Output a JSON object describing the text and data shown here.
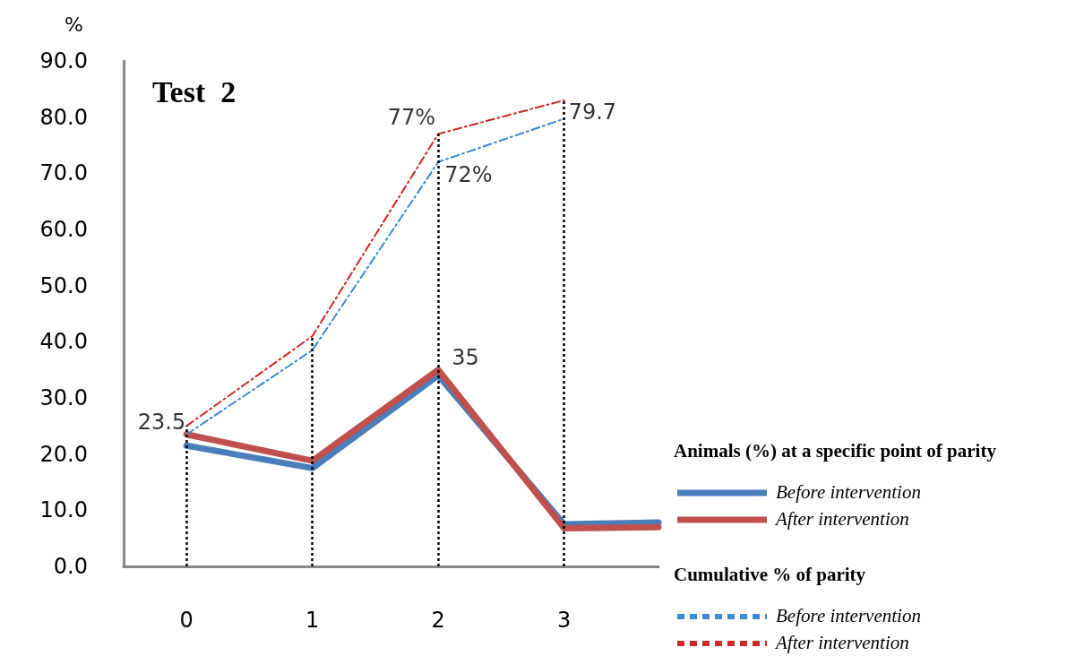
{
  "chart_data": {
    "type": "line",
    "title": "Test  2",
    "ylabel": "%",
    "xlim": [
      -0.5,
      3.75
    ],
    "xticks": [
      0,
      1,
      2,
      3
    ],
    "ylim": [
      0,
      90
    ],
    "yticks": [
      {
        "value": 0,
        "label": "0.0"
      },
      {
        "value": 10,
        "label": "10.0"
      },
      {
        "value": 20,
        "label": "20.0"
      },
      {
        "value": 30,
        "label": "30.0"
      },
      {
        "value": 40,
        "label": "40.0"
      },
      {
        "value": 50,
        "label": "50.0"
      },
      {
        "value": 60,
        "label": "60.0"
      },
      {
        "value": 70,
        "label": "70.0"
      },
      {
        "value": 80,
        "label": "80.0"
      },
      {
        "value": 90,
        "label": "90.0"
      }
    ],
    "series": [
      {
        "name": "Before intervention",
        "color": "#4a7ebb",
        "line_style": "solid",
        "x": [
          0,
          1,
          2,
          3,
          3.75
        ],
        "values": [
          21.5,
          17.5,
          34,
          7.5,
          7.8
        ]
      },
      {
        "name": "After intervention",
        "color": "#c0504d",
        "line_style": "solid",
        "x": [
          0,
          1,
          2,
          3,
          3.75
        ],
        "values": [
          23.5,
          18.8,
          35,
          6.8,
          7.0
        ]
      },
      {
        "name": "Before intervention",
        "color": "#3c8ad0",
        "line_style": "dashed",
        "x": [
          0,
          1,
          2,
          3
        ],
        "values": [
          23.5,
          38.5,
          72,
          79.7
        ]
      },
      {
        "name": "After intervention",
        "color": "#d02828",
        "line_style": "dashed",
        "x": [
          0,
          1,
          2,
          3
        ],
        "values": [
          25,
          41,
          77,
          83
        ]
      }
    ],
    "ref_lines": [
      {
        "axis": "x",
        "value": 0,
        "color": "#000000",
        "line_style": "dotted"
      },
      {
        "axis": "x",
        "value": 1,
        "color": "#000000",
        "line_style": "dotted"
      },
      {
        "axis": "x",
        "value": 2,
        "color": "#000000",
        "line_style": "dotted"
      },
      {
        "axis": "x",
        "value": 3,
        "color": "#000000",
        "line_style": "dotted"
      }
    ],
    "annotations": [
      {
        "text": "23.5",
        "x": 0,
        "y": 23.5
      },
      {
        "text": "35",
        "x": 2,
        "y": 35
      },
      {
        "text": "77%",
        "x": 2,
        "y": 77
      },
      {
        "text": "72%",
        "x": 2,
        "y": 72
      },
      {
        "text": "79.7",
        "x": 3,
        "y": 79.7
      },
      "Animals (%) at a specific point of parity",
      "Cumulative % of parity"
    ],
    "legend": "right",
    "grid": false,
    "marker": "none"
  }
}
